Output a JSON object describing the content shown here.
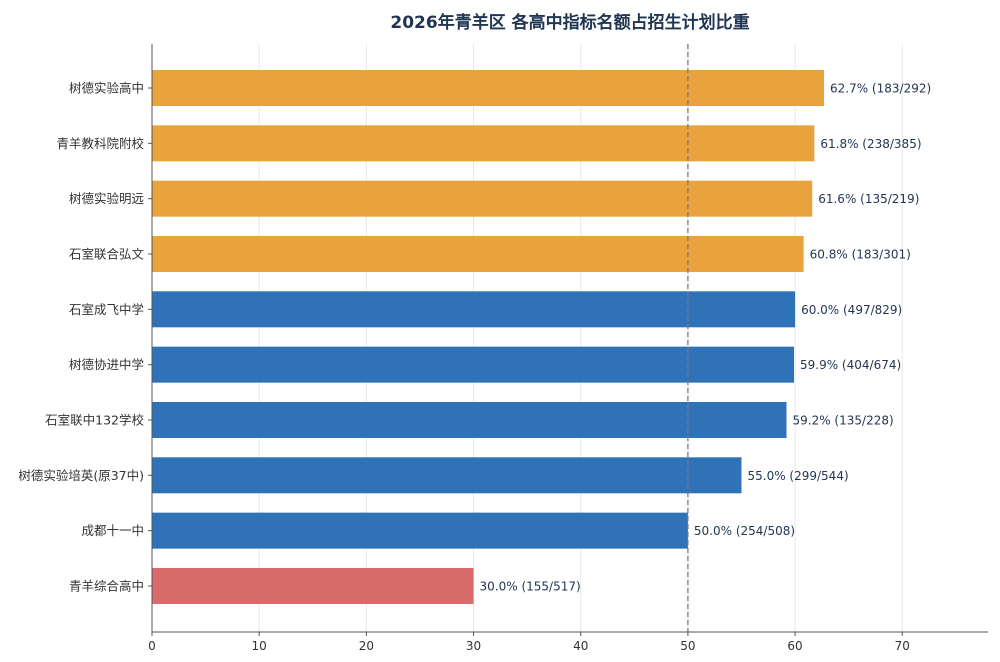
{
  "chart_data": {
    "type": "bar",
    "orientation": "horizontal",
    "title": "2026年青羊区 各高中指标名额占招生计划比重",
    "xlabel": "",
    "ylabel": "",
    "xlim": [
      0,
      78
    ],
    "xticks": [
      0,
      10,
      20,
      30,
      40,
      50,
      60,
      70
    ],
    "grid": true,
    "reference_line": 50,
    "categories": [
      "树德实验高中",
      "青羊教科院附校",
      "树德实验明远",
      "石室联合弘文",
      "石室成飞中学",
      "树德协进中学",
      "石室联中132学校",
      "树德实验培英(原37中)",
      "成都十一中",
      "青羊综合高中"
    ],
    "values": [
      62.7,
      61.8,
      61.6,
      60.8,
      60.0,
      59.9,
      59.2,
      55.0,
      50.0,
      30.0
    ],
    "labels": [
      "62.7%  (183/292)",
      "61.8%  (238/385)",
      "61.6%  (135/219)",
      "60.8%  (183/301)",
      "60.0%  (497/829)",
      "59.9%  (404/674)",
      "59.2%  (135/228)",
      "55.0%  (299/544)",
      "50.0%  (254/508)",
      "30.0%  (155/517)"
    ],
    "colors": [
      "#e8a33d",
      "#e8a33d",
      "#e8a33d",
      "#e8a33d",
      "#2f72b8",
      "#2f72b8",
      "#2f72b8",
      "#2f72b8",
      "#2f72b8",
      "#d96b6b"
    ]
  }
}
